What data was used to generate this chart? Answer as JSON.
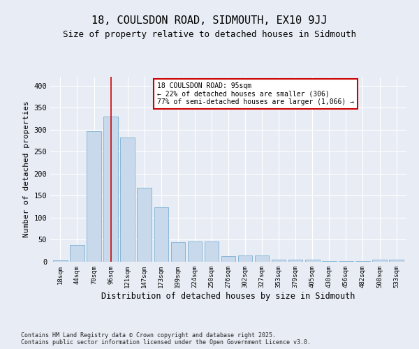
{
  "title": "18, COULSDON ROAD, SIDMOUTH, EX10 9JJ",
  "subtitle": "Size of property relative to detached houses in Sidmouth",
  "xlabel": "Distribution of detached houses by size in Sidmouth",
  "ylabel": "Number of detached properties",
  "footnote": "Contains HM Land Registry data © Crown copyright and database right 2025.\nContains public sector information licensed under the Open Government Licence v3.0.",
  "categories": [
    "18sqm",
    "44sqm",
    "70sqm",
    "96sqm",
    "121sqm",
    "147sqm",
    "173sqm",
    "199sqm",
    "224sqm",
    "250sqm",
    "276sqm",
    "302sqm",
    "327sqm",
    "353sqm",
    "379sqm",
    "405sqm",
    "430sqm",
    "456sqm",
    "482sqm",
    "508sqm",
    "533sqm"
  ],
  "values": [
    3,
    38,
    297,
    330,
    282,
    168,
    124,
    44,
    46,
    46,
    13,
    15,
    15,
    4,
    4,
    4,
    2,
    2,
    2,
    4,
    4
  ],
  "bar_color": "#c9d9ec",
  "bar_edge_color": "#7aafd4",
  "vline_x": 3,
  "vline_color": "#cc0000",
  "annotation_text": "18 COULSDON ROAD: 95sqm\n← 22% of detached houses are smaller (306)\n77% of semi-detached houses are larger (1,066) →",
  "annotation_box_color": "#cc0000",
  "annotation_bg": "#ffffff",
  "ylim": [
    0,
    420
  ],
  "yticks": [
    0,
    50,
    100,
    150,
    200,
    250,
    300,
    350,
    400
  ],
  "bg_color": "#e8edf5",
  "plot_bg_color": "#e8edf5",
  "title_fontsize": 11,
  "subtitle_fontsize": 9,
  "xlabel_fontsize": 8.5,
  "ylabel_fontsize": 8
}
